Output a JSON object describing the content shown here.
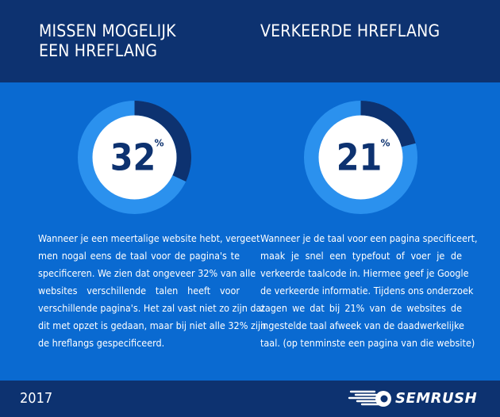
{
  "colors": {
    "background": "#0a6ad1",
    "band": "#0d3270",
    "ring_light": "#2b91ee",
    "ring_dark": "#0d3270",
    "center": "#ffffff",
    "text_dark": "#0d3270"
  },
  "left": {
    "heading_lines": [
      "MISSEN MOGELIJK",
      "EEN HREFLANG"
    ],
    "percent_value": 32,
    "percent_label": "32",
    "percent_sign": "%",
    "body_lines": [
      "Wanneer je een meertalige website hebt, vergeet",
      "men nogal eens de taal voor de pagina's te",
      "specificeren. We zien dat ongeveer 32% van alle",
      "websites verschillende talen heeft voor",
      "verschillende pagina's. Het zal vast niet zo zijn dat",
      "dit met opzet is gedaan, maar bij niet alle 32% zijn",
      "de hreflangs gespecificeerd."
    ]
  },
  "right": {
    "heading_lines": [
      "VERKEERDE HREFLANG"
    ],
    "percent_value": 21,
    "percent_label": "21",
    "percent_sign": "%",
    "body_lines": [
      "Wanneer je de taal voor een pagina specificeert,",
      "maak je snel een typefout of voer je de",
      "verkeerde taalcode in. Hiermee geef je Google",
      "de verkeerde informatie. Tijdens ons onderzoek",
      "zagen we dat bij 21% van de websites de",
      "ingestelde taal afweek van de daadwerkelijke",
      "taal. (op tenminste een pagina van die website)"
    ]
  },
  "footer": {
    "year": "2017",
    "brand": "SEMRUSH",
    "logo_icon": "semrush-fireball-icon"
  }
}
